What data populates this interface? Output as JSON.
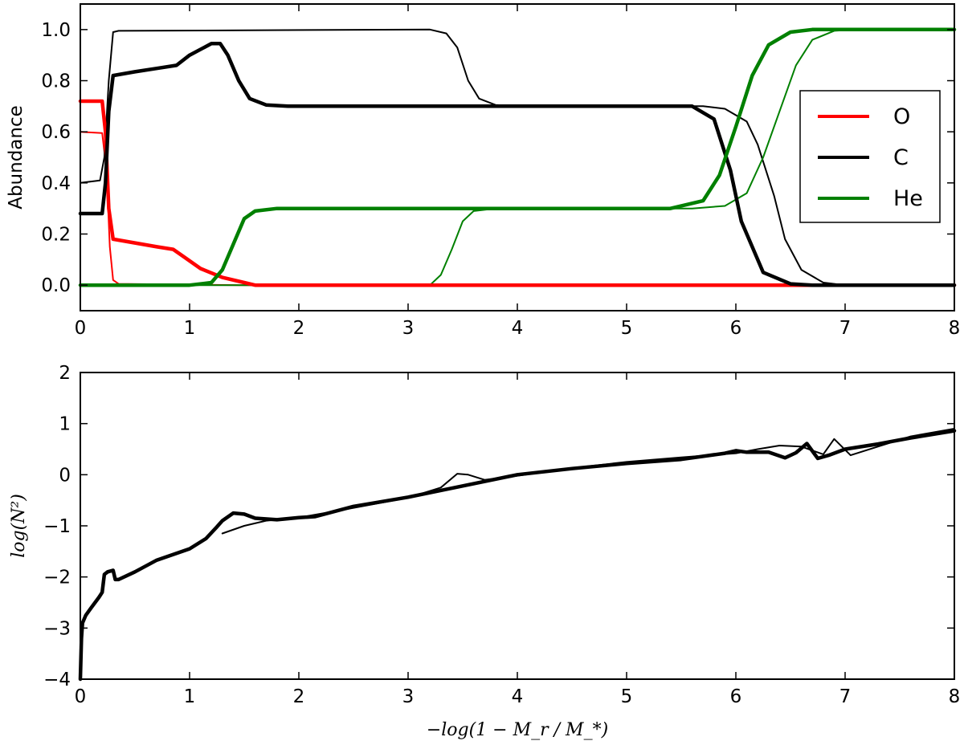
{
  "chart_data": [
    {
      "type": "line",
      "ylabel": "Abundance",
      "xlim": [
        0,
        8
      ],
      "ylim": [
        -0.1,
        1.1
      ],
      "xticks": [
        "0",
        "1",
        "2",
        "3",
        "4",
        "5",
        "6",
        "7",
        "8"
      ],
      "yticks": [
        "0.0",
        "0.2",
        "0.4",
        "0.6",
        "0.8",
        "1.0"
      ],
      "grid": false,
      "legend_position": "right",
      "legend": [
        {
          "label": "O",
          "color": "#ff0000"
        },
        {
          "label": "C",
          "color": "#000000"
        },
        {
          "label": "He",
          "color": "#008000"
        }
      ],
      "series": [
        {
          "name": "O",
          "color": "#ff0000",
          "weight": "thick",
          "points": [
            [
              0,
              0.72
            ],
            [
              0.2,
              0.72
            ],
            [
              0.23,
              0.6
            ],
            [
              0.26,
              0.3
            ],
            [
              0.3,
              0.18
            ],
            [
              0.5,
              0.165
            ],
            [
              0.7,
              0.15
            ],
            [
              0.85,
              0.14
            ],
            [
              0.95,
              0.11
            ],
            [
              1.1,
              0.065
            ],
            [
              1.3,
              0.03
            ],
            [
              1.5,
              0.01
            ],
            [
              1.6,
              0.0
            ],
            [
              8,
              0.0
            ]
          ]
        },
        {
          "name": "O",
          "color": "#ff0000",
          "weight": "thin",
          "points": [
            [
              0,
              0.6
            ],
            [
              0.2,
              0.595
            ],
            [
              0.24,
              0.45
            ],
            [
              0.27,
              0.15
            ],
            [
              0.3,
              0.02
            ],
            [
              0.35,
              0.005
            ],
            [
              1.5,
              0.0
            ],
            [
              8,
              0.0
            ]
          ]
        },
        {
          "name": "C",
          "color": "#000000",
          "weight": "thick",
          "points": [
            [
              0,
              0.28
            ],
            [
              0.2,
              0.28
            ],
            [
              0.23,
              0.4
            ],
            [
              0.26,
              0.68
            ],
            [
              0.3,
              0.82
            ],
            [
              0.5,
              0.835
            ],
            [
              0.7,
              0.848
            ],
            [
              0.88,
              0.86
            ],
            [
              1.0,
              0.9
            ],
            [
              1.2,
              0.945
            ],
            [
              1.28,
              0.945
            ],
            [
              1.35,
              0.9
            ],
            [
              1.45,
              0.8
            ],
            [
              1.55,
              0.73
            ],
            [
              1.7,
              0.705
            ],
            [
              1.9,
              0.7
            ],
            [
              5.6,
              0.7
            ],
            [
              5.8,
              0.65
            ],
            [
              5.95,
              0.45
            ],
            [
              6.05,
              0.25
            ],
            [
              6.25,
              0.05
            ],
            [
              6.5,
              0.005
            ],
            [
              6.7,
              0.0
            ],
            [
              8,
              0.0
            ]
          ]
        },
        {
          "name": "C",
          "color": "#000000",
          "weight": "thin",
          "points": [
            [
              0,
              0.4
            ],
            [
              0.18,
              0.41
            ],
            [
              0.22,
              0.5
            ],
            [
              0.26,
              0.8
            ],
            [
              0.3,
              0.99
            ],
            [
              0.35,
              0.995
            ],
            [
              3.2,
              1.0
            ],
            [
              3.35,
              0.985
            ],
            [
              3.45,
              0.93
            ],
            [
              3.55,
              0.8
            ],
            [
              3.65,
              0.73
            ],
            [
              3.8,
              0.705
            ],
            [
              4.0,
              0.7
            ],
            [
              5.7,
              0.7
            ],
            [
              5.9,
              0.69
            ],
            [
              6.1,
              0.64
            ],
            [
              6.2,
              0.55
            ],
            [
              6.35,
              0.35
            ],
            [
              6.45,
              0.18
            ],
            [
              6.6,
              0.06
            ],
            [
              6.8,
              0.01
            ],
            [
              7.0,
              0.0
            ],
            [
              8,
              0.0
            ]
          ]
        },
        {
          "name": "He",
          "color": "#008000",
          "weight": "thick",
          "points": [
            [
              0,
              0.0
            ],
            [
              1.0,
              0.0
            ],
            [
              1.2,
              0.01
            ],
            [
              1.3,
              0.06
            ],
            [
              1.4,
              0.16
            ],
            [
              1.5,
              0.26
            ],
            [
              1.6,
              0.29
            ],
            [
              1.8,
              0.3
            ],
            [
              5.4,
              0.3
            ],
            [
              5.7,
              0.33
            ],
            [
              5.85,
              0.43
            ],
            [
              6.0,
              0.62
            ],
            [
              6.15,
              0.82
            ],
            [
              6.3,
              0.94
            ],
            [
              6.5,
              0.99
            ],
            [
              6.7,
              1.0
            ],
            [
              8,
              1.0
            ]
          ]
        },
        {
          "name": "He",
          "color": "#008000",
          "weight": "thin",
          "points": [
            [
              0,
              0.0
            ],
            [
              3.2,
              0.0
            ],
            [
              3.3,
              0.04
            ],
            [
              3.4,
              0.14
            ],
            [
              3.5,
              0.25
            ],
            [
              3.6,
              0.29
            ],
            [
              3.8,
              0.3
            ],
            [
              5.6,
              0.3
            ],
            [
              5.9,
              0.31
            ],
            [
              6.1,
              0.36
            ],
            [
              6.25,
              0.5
            ],
            [
              6.4,
              0.68
            ],
            [
              6.55,
              0.86
            ],
            [
              6.7,
              0.96
            ],
            [
              6.9,
              0.995
            ],
            [
              7.1,
              1.0
            ],
            [
              8,
              1.0
            ]
          ]
        }
      ]
    },
    {
      "type": "line",
      "xlabel": "−log(1 − M_r / M_*)",
      "ylabel": "log(N²)",
      "xlim": [
        0,
        8
      ],
      "ylim": [
        -4,
        2
      ],
      "xticks": [
        "0",
        "1",
        "2",
        "3",
        "4",
        "5",
        "6",
        "7",
        "8"
      ],
      "yticks": [
        "−4",
        "−3",
        "−2",
        "−1",
        "0",
        "1",
        "2"
      ],
      "grid": false,
      "series": [
        {
          "color": "#000000",
          "weight": "thick",
          "points": [
            [
              0.0,
              -4.0
            ],
            [
              0.01,
              -3.2
            ],
            [
              0.02,
              -2.9
            ],
            [
              0.05,
              -2.75
            ],
            [
              0.1,
              -2.6
            ],
            [
              0.17,
              -2.4
            ],
            [
              0.2,
              -2.3
            ],
            [
              0.22,
              -1.95
            ],
            [
              0.25,
              -1.9
            ],
            [
              0.3,
              -1.87
            ],
            [
              0.32,
              -2.05
            ],
            [
              0.35,
              -2.05
            ],
            [
              0.5,
              -1.9
            ],
            [
              0.7,
              -1.67
            ],
            [
              1.0,
              -1.45
            ],
            [
              1.15,
              -1.25
            ],
            [
              1.25,
              -1.02
            ],
            [
              1.3,
              -0.9
            ],
            [
              1.4,
              -0.75
            ],
            [
              1.5,
              -0.77
            ],
            [
              1.6,
              -0.85
            ],
            [
              1.8,
              -0.88
            ],
            [
              2.0,
              -0.84
            ],
            [
              2.15,
              -0.82
            ],
            [
              2.5,
              -0.62
            ],
            [
              3.0,
              -0.44
            ],
            [
              3.5,
              -0.22
            ],
            [
              4.0,
              0.0
            ],
            [
              4.5,
              0.12
            ],
            [
              5.0,
              0.22
            ],
            [
              5.5,
              0.3
            ],
            [
              5.9,
              0.42
            ],
            [
              6.0,
              0.47
            ],
            [
              6.1,
              0.44
            ],
            [
              6.3,
              0.44
            ],
            [
              6.45,
              0.33
            ],
            [
              6.55,
              0.43
            ],
            [
              6.65,
              0.61
            ],
            [
              6.75,
              0.32
            ],
            [
              6.85,
              0.38
            ],
            [
              7.0,
              0.5
            ],
            [
              7.3,
              0.6
            ],
            [
              7.6,
              0.72
            ],
            [
              8.0,
              0.86
            ]
          ]
        },
        {
          "color": "#000000",
          "weight": "thin",
          "points": [
            [
              1.3,
              -1.15
            ],
            [
              1.5,
              -1.0
            ],
            [
              1.7,
              -0.9
            ],
            [
              2.0,
              -0.84
            ],
            [
              2.5,
              -0.65
            ],
            [
              3.0,
              -0.45
            ],
            [
              3.3,
              -0.25
            ],
            [
              3.45,
              0.02
            ],
            [
              3.55,
              0.0
            ],
            [
              3.7,
              -0.1
            ],
            [
              4.0,
              -0.02
            ],
            [
              4.5,
              0.13
            ],
            [
              5.0,
              0.25
            ],
            [
              5.5,
              0.34
            ],
            [
              6.0,
              0.42
            ],
            [
              6.2,
              0.5
            ],
            [
              6.4,
              0.57
            ],
            [
              6.6,
              0.55
            ],
            [
              6.8,
              0.4
            ],
            [
              6.9,
              0.7
            ],
            [
              7.05,
              0.38
            ],
            [
              7.3,
              0.55
            ],
            [
              7.6,
              0.75
            ],
            [
              8.0,
              0.9
            ]
          ]
        }
      ]
    }
  ]
}
